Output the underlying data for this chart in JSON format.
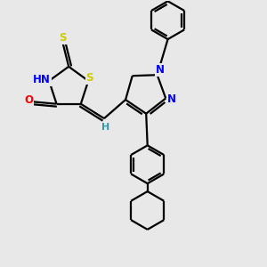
{
  "background_color": "#e8e8e8",
  "bond_color": "#000000",
  "bond_width": 1.6,
  "atom_colors": {
    "S": "#cccc00",
    "N": "#0000ff",
    "O": "#ff0000",
    "H": "#3399aa",
    "C": "#000000"
  },
  "font_size_atom": 8.5,
  "font_size_H": 8.0,
  "xlim": [
    0,
    10
  ],
  "ylim": [
    0,
    10
  ]
}
